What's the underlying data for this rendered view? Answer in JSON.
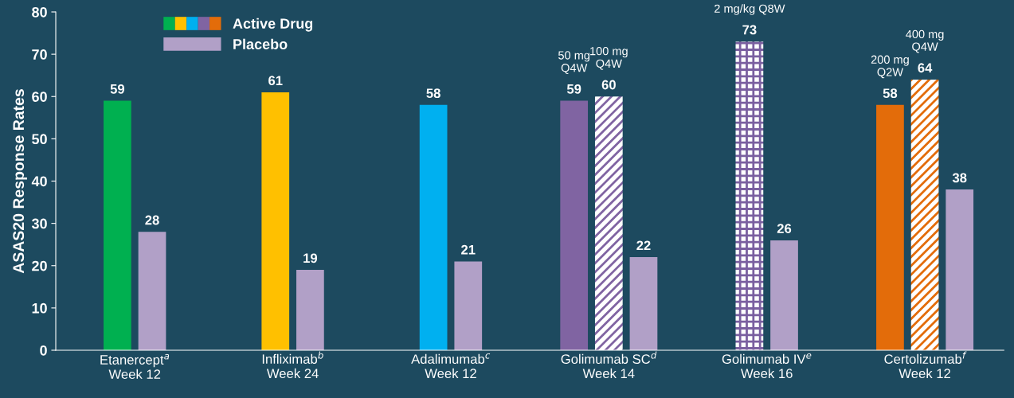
{
  "chart_data": {
    "type": "bar",
    "ylabel": "ASAS20 Response Rates",
    "categories": [
      "Etanercept$^{a}$\nWeek 12",
      "Infliximab$^{b}$\nWeek 24",
      "Adalimumab$^{c}$\nWeek 12",
      "Golimumab SC$^{d}$\nWeek 14",
      "Golimumab IV$^{e}$\nWeek 16",
      "Certolizumab$^{f}$\nWeek 12"
    ],
    "series": [
      {
        "name": "Active Drug",
        "colors": [
          "#00b050",
          "#ffc000",
          "#00b0f0",
          "#8064a2",
          null,
          "#e36c0a"
        ],
        "values": [
          59,
          61,
          58,
          59,
          null,
          58
        ]
      },
      {
        "colors": [
          null,
          null,
          null,
          "#8064a2",
          null,
          "#e36c0a"
        ],
        "values": [
          null,
          null,
          null,
          60,
          null,
          64
        ]
      },
      {
        "color": "#7a5fa0",
        "values": [
          null,
          null,
          null,
          null,
          73,
          null
        ]
      },
      {
        "name": "Placebo",
        "color": "#b1a0c7",
        "values": [
          28,
          19,
          21,
          22,
          26,
          38
        ]
      }
    ],
    "ylim": [
      0,
      80
    ],
    "yticks": [
      0,
      10,
      20,
      30,
      40,
      50,
      60,
      70,
      80
    ],
    "data_labels": true,
    "grid": false,
    "legend": "top left",
    "annotations": [
      "50 mg\nQ4W",
      "100 mg\nQ4W",
      "2 mg/kg Q8W",
      "200 mg\nQ2W",
      "400 mg\nQ4W"
    ]
  }
}
